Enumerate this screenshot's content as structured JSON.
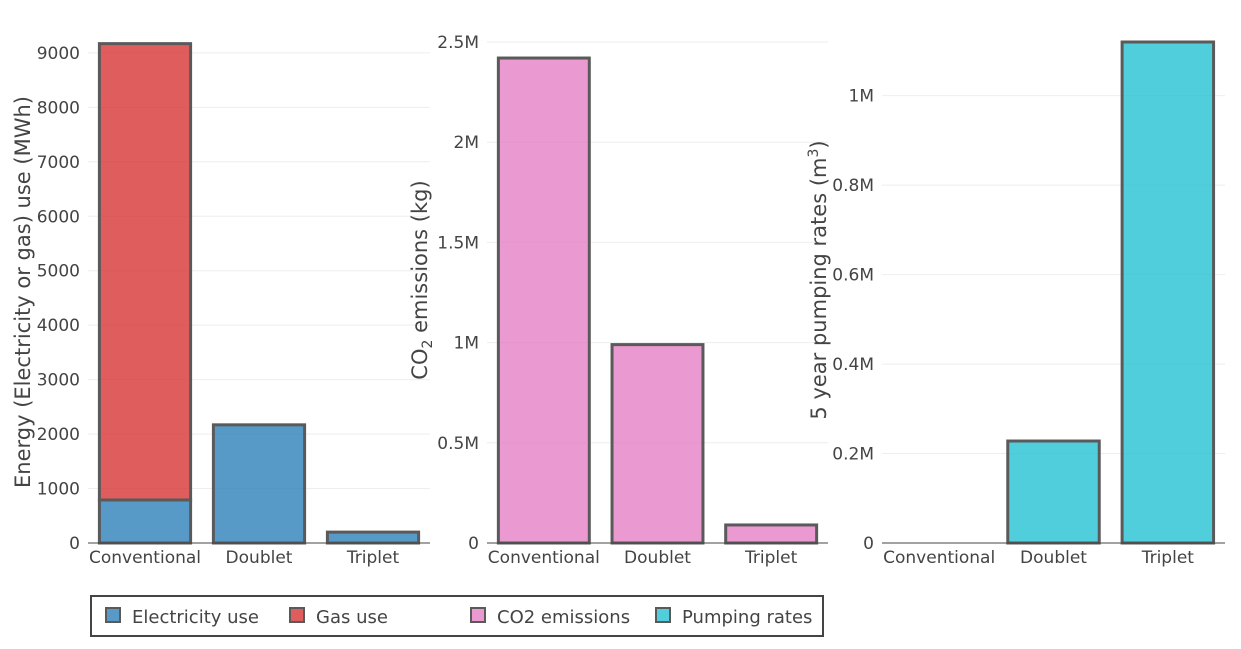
{
  "chart_data": [
    {
      "type": "bar",
      "stacked": true,
      "categories": [
        "Conventional",
        "Doublet",
        "Triplet"
      ],
      "ylabel": "Energy (Electricity or gas) use (MWh)",
      "ylim": [
        0,
        9200
      ],
      "yticks": [
        0,
        1000,
        2000,
        3000,
        4000,
        5000,
        6000,
        7000,
        8000,
        9000
      ],
      "ytick_labels": [
        "0",
        "1000",
        "2000",
        "3000",
        "4000",
        "5000",
        "6000",
        "7000",
        "8000",
        "9000"
      ],
      "grid": true,
      "series": [
        {
          "name": "Electricity use",
          "color": "#1f77b4",
          "values": [
            790,
            2170,
            200
          ]
        },
        {
          "name": "Gas use",
          "color": "#d62728",
          "values": [
            8380,
            0,
            0
          ]
        }
      ]
    },
    {
      "type": "bar",
      "categories": [
        "Conventional",
        "Doublet",
        "Triplet"
      ],
      "ylabel_main": "CO",
      "ylabel_sub": "2",
      "ylabel_rest": " emissions (kg)",
      "ylim": [
        0,
        2500000
      ],
      "yticks": [
        0,
        500000,
        1000000,
        1500000,
        2000000,
        2500000
      ],
      "ytick_labels": [
        "0",
        "0.5M",
        "1M",
        "1.5M",
        "2M",
        "2.5M"
      ],
      "grid": true,
      "series": [
        {
          "name": "CO2 emissions",
          "color": "#e377c2",
          "values": [
            2420000,
            990000,
            90000
          ]
        }
      ]
    },
    {
      "type": "bar",
      "categories": [
        "Conventional",
        "Doublet",
        "Triplet"
      ],
      "ylabel_main": "5 year pumping rates (m",
      "ylabel_sup": "3",
      "ylabel_rest": ")",
      "ylim": [
        0,
        1120000
      ],
      "yticks": [
        0,
        200000,
        400000,
        600000,
        800000,
        1000000
      ],
      "ytick_labels": [
        "0",
        "0.2M",
        "0.4M",
        "0.6M",
        "0.8M",
        "1M"
      ],
      "grid": true,
      "series": [
        {
          "name": "Pumping rates",
          "color": "#17becf",
          "values": [
            0,
            228000,
            1120000
          ]
        }
      ]
    }
  ],
  "legend": {
    "placement": "bottom",
    "items": [
      {
        "label": "Electricity use",
        "color": "#1f77b4"
      },
      {
        "label": "Gas use",
        "color": "#d62728"
      },
      {
        "label": "CO2 emissions",
        "color": "#e377c2"
      },
      {
        "label": "Pumping rates",
        "color": "#17becf"
      }
    ]
  }
}
